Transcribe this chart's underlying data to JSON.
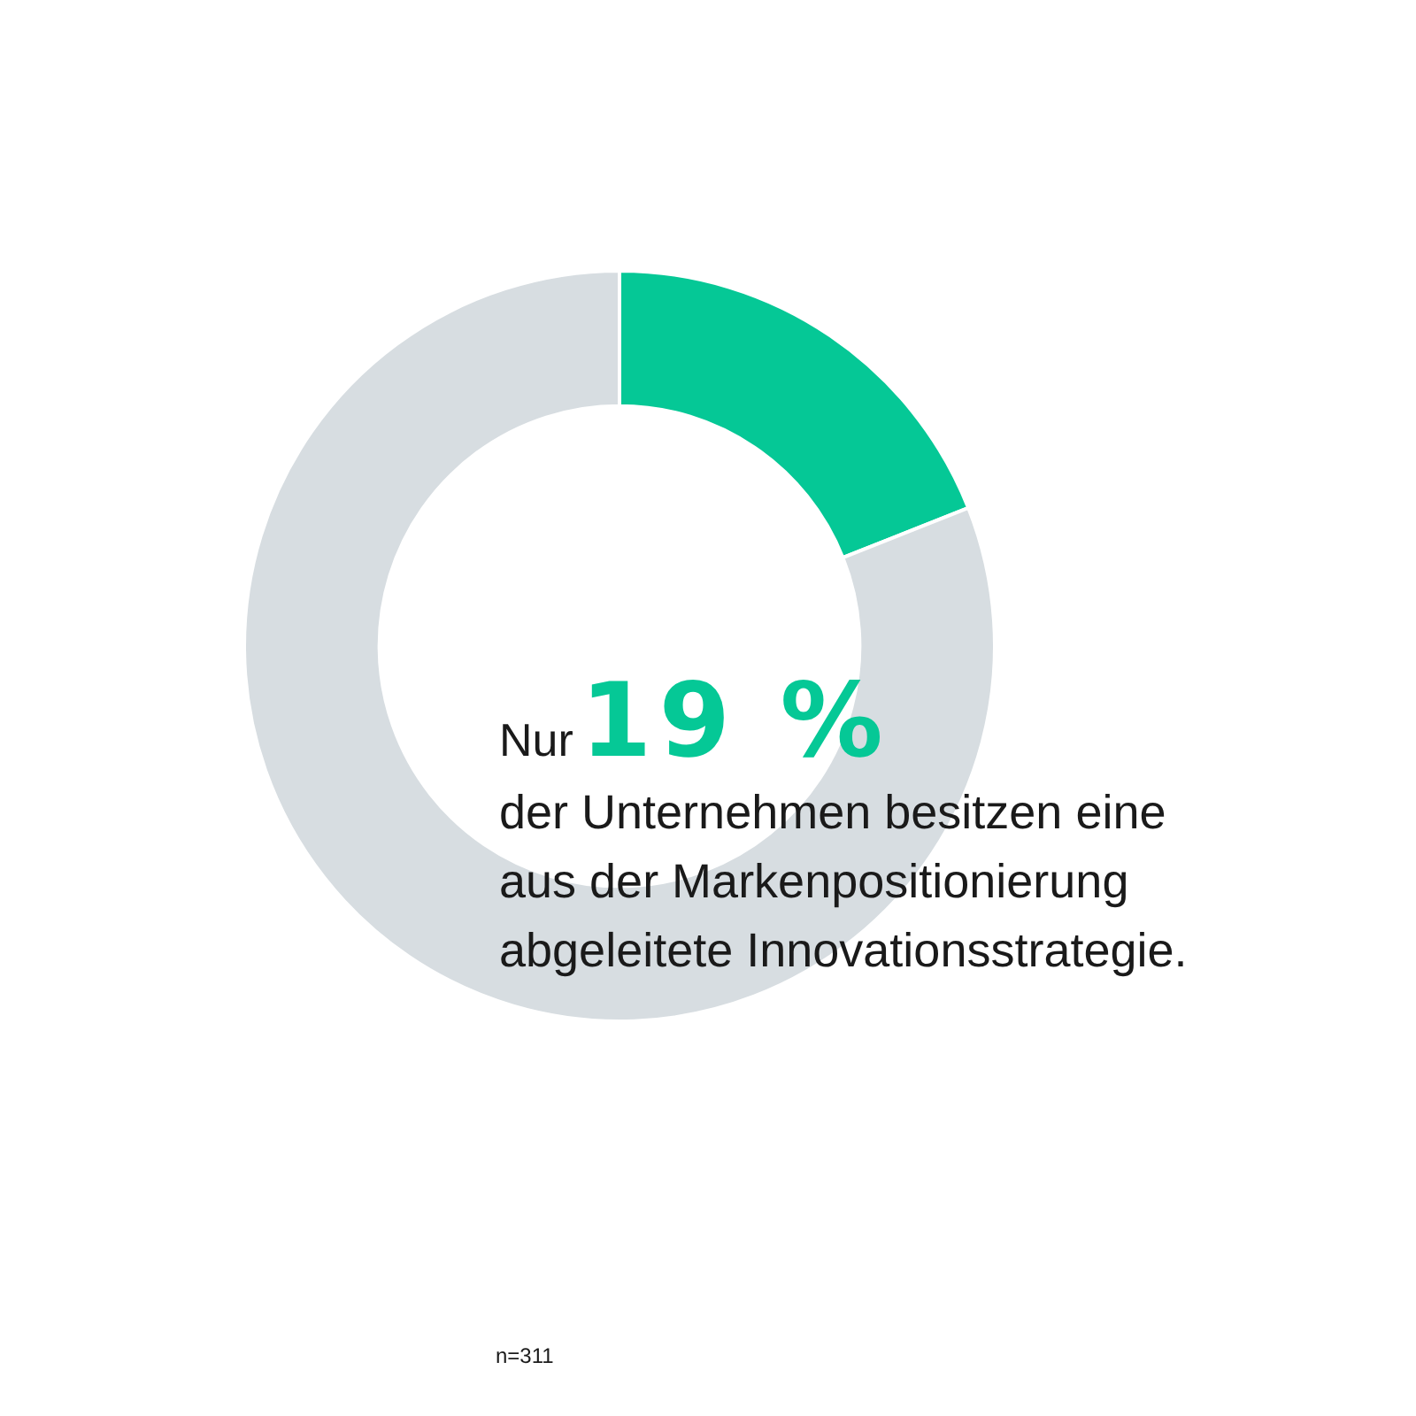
{
  "chart_data": {
    "type": "donut",
    "categories": [
      null,
      null
    ],
    "values": [
      19,
      81
    ],
    "colors": [
      "#05c896",
      "#d7dde1"
    ],
    "annotations": [
      "Nur",
      "19 %",
      "der Unternehmen besitzen eine aus der Markenpositionierung abgeleitete Innovationsstrategie.",
      "n=311"
    ]
  }
}
